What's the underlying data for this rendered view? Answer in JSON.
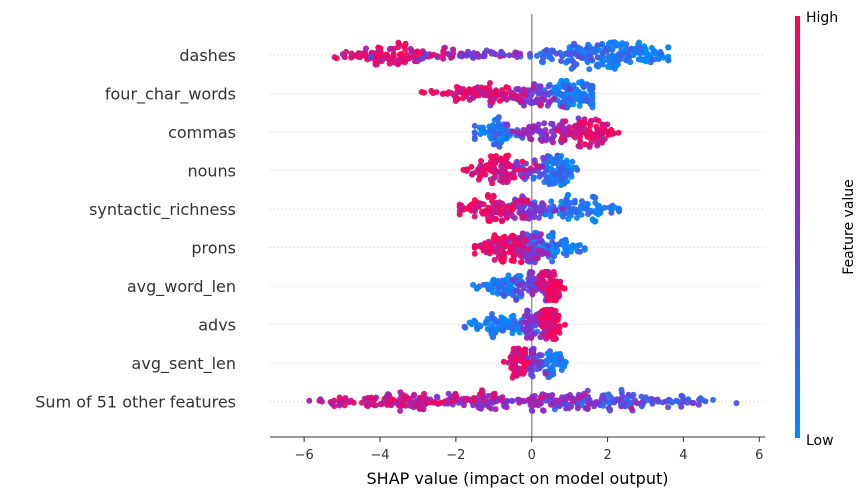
{
  "chart_data": {
    "type": "scatter",
    "subtype": "shap-beeswarm",
    "xlabel": "SHAP value (impact on model output)",
    "xlim": [
      -6.9,
      6.15
    ],
    "xticks": [
      -6,
      -4,
      -2,
      0,
      2,
      4,
      6
    ],
    "xtick_labels": [
      "−6",
      "−4",
      "−2",
      "0",
      "2",
      "4",
      "6"
    ],
    "colorbar": {
      "label": "Feature value",
      "high_label": "High",
      "low_label": "Low",
      "high_color": "#ff0052",
      "low_color": "#008bfb"
    },
    "zero_line": true,
    "grid": false,
    "features": [
      {
        "name": "dashes",
        "x_range": [
          -5.2,
          3.6
        ],
        "clusters": [
          {
            "center": 2.3,
            "spread": 0.75,
            "count": 160,
            "value": 0.1
          },
          {
            "center": 0.9,
            "spread": 0.55,
            "count": 55,
            "value": 0.2
          },
          {
            "center": -3.5,
            "spread": 0.7,
            "count": 120,
            "value": 0.85
          },
          {
            "center": -1.2,
            "spread": 0.9,
            "count": 40,
            "value": 0.5
          }
        ]
      },
      {
        "name": "four_char_words",
        "x_range": [
          -2.9,
          1.6
        ],
        "clusters": [
          {
            "center": 1.0,
            "spread": 0.45,
            "count": 110,
            "value": 0.1
          },
          {
            "center": 0.05,
            "spread": 0.4,
            "count": 60,
            "value": 0.5
          },
          {
            "center": -1.5,
            "spread": 0.65,
            "count": 95,
            "value": 0.85
          }
        ]
      },
      {
        "name": "commas",
        "x_range": [
          -1.5,
          2.3
        ],
        "clusters": [
          {
            "center": -0.9,
            "spread": 0.35,
            "count": 70,
            "value": 0.12
          },
          {
            "center": 0.4,
            "spread": 0.4,
            "count": 70,
            "value": 0.55
          },
          {
            "center": 1.4,
            "spread": 0.4,
            "count": 90,
            "value": 0.88
          }
        ]
      },
      {
        "name": "nouns",
        "x_range": [
          -1.8,
          1.3
        ],
        "clusters": [
          {
            "center": 0.65,
            "spread": 0.25,
            "count": 95,
            "value": 0.12
          },
          {
            "center": -0.2,
            "spread": 0.3,
            "count": 40,
            "value": 0.45
          },
          {
            "center": -0.9,
            "spread": 0.4,
            "count": 90,
            "value": 0.88
          }
        ]
      },
      {
        "name": "syntactic_richness",
        "x_range": [
          -1.9,
          2.3
        ],
        "clusters": [
          {
            "center": 1.1,
            "spread": 0.6,
            "count": 95,
            "value": 0.1
          },
          {
            "center": -0.15,
            "spread": 0.35,
            "count": 60,
            "value": 0.5
          },
          {
            "center": -1.0,
            "spread": 0.45,
            "count": 85,
            "value": 0.88
          }
        ]
      },
      {
        "name": "prons",
        "x_range": [
          -1.5,
          1.4
        ],
        "clusters": [
          {
            "center": 0.55,
            "spread": 0.35,
            "count": 85,
            "value": 0.12
          },
          {
            "center": -0.05,
            "spread": 0.25,
            "count": 60,
            "value": 0.5
          },
          {
            "center": -0.85,
            "spread": 0.35,
            "count": 90,
            "value": 0.88
          }
        ]
      },
      {
        "name": "avg_word_len",
        "x_range": [
          -1.7,
          1.0
        ],
        "clusters": [
          {
            "center": -0.7,
            "spread": 0.4,
            "count": 80,
            "value": 0.1
          },
          {
            "center": 0.1,
            "spread": 0.25,
            "count": 55,
            "value": 0.5
          },
          {
            "center": 0.55,
            "spread": 0.15,
            "count": 65,
            "value": 0.9
          }
        ]
      },
      {
        "name": "advs",
        "x_range": [
          -1.8,
          0.9
        ],
        "clusters": [
          {
            "center": -0.8,
            "spread": 0.45,
            "count": 80,
            "value": 0.1
          },
          {
            "center": 0.05,
            "spread": 0.2,
            "count": 50,
            "value": 0.5
          },
          {
            "center": 0.5,
            "spread": 0.15,
            "count": 75,
            "value": 0.9
          }
        ]
      },
      {
        "name": "avg_sent_len",
        "x_range": [
          -0.9,
          0.9
        ],
        "clusters": [
          {
            "center": 0.55,
            "spread": 0.18,
            "count": 55,
            "value": 0.1
          },
          {
            "center": 0.0,
            "spread": 0.15,
            "count": 40,
            "value": 0.5
          },
          {
            "center": -0.4,
            "spread": 0.12,
            "count": 60,
            "value": 0.9
          }
        ]
      },
      {
        "name": "Sum of 51 other features",
        "x_range": [
          -6.4,
          5.4
        ],
        "clusters": [
          {
            "center": 2.4,
            "spread": 1.2,
            "count": 130,
            "value": 0.3
          },
          {
            "center": -0.5,
            "spread": 1.6,
            "count": 150,
            "value": 0.55
          },
          {
            "center": -3.4,
            "spread": 1.1,
            "count": 110,
            "value": 0.8
          }
        ]
      }
    ]
  }
}
